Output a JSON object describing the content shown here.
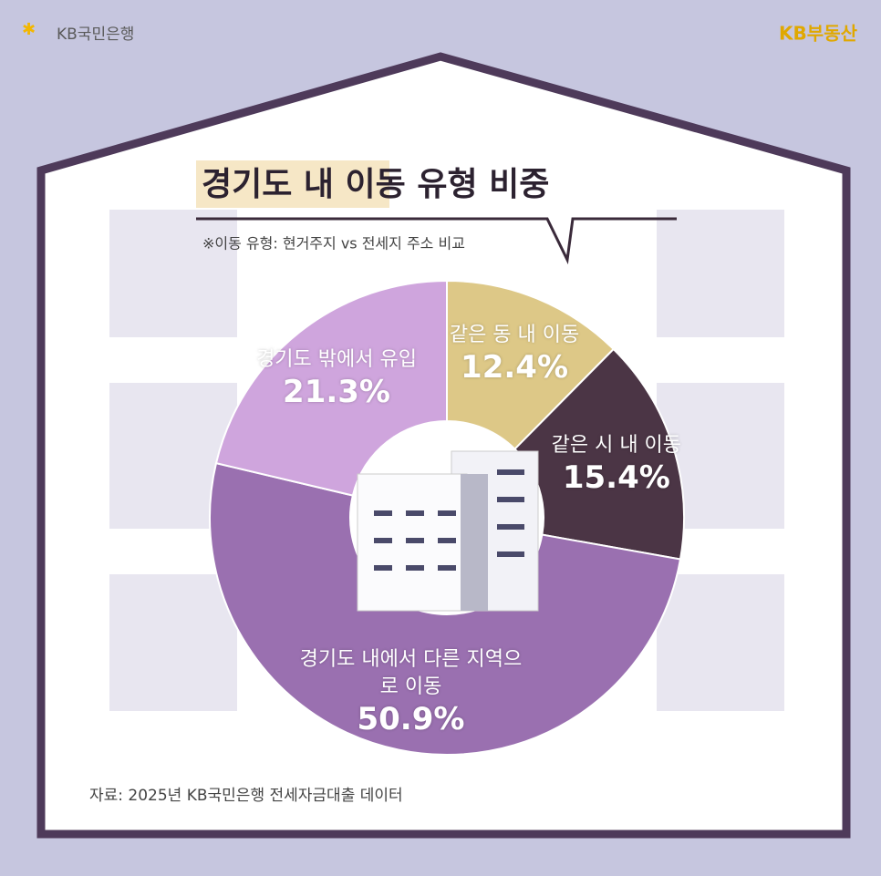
{
  "header": {
    "left_logo": "KB국민은행",
    "right_logo": "KB부동산"
  },
  "chart_data": {
    "type": "pie",
    "donut": true,
    "title": "경기도 내 이동 유형 비중",
    "subtitle": "※이동 유형: 현거주지 vs 전세지 주소 비교",
    "categories": [
      "같은 동 내 이동",
      "같은 시 내 이동",
      "경기도 내에서 다른 지역으로 이동",
      "경기도 밖에서 유입"
    ],
    "values": [
      12.4,
      15.4,
      50.9,
      21.3
    ],
    "value_labels": [
      "12.4%",
      "15.4%",
      "50.9%",
      "21.3%"
    ],
    "colors": [
      "#ddc887",
      "#4b3545",
      "#9a70b0",
      "#cfa5dd"
    ]
  },
  "footer": {
    "source": "자료: 2025년 KB국민은행 전세자금대출 데이터"
  }
}
